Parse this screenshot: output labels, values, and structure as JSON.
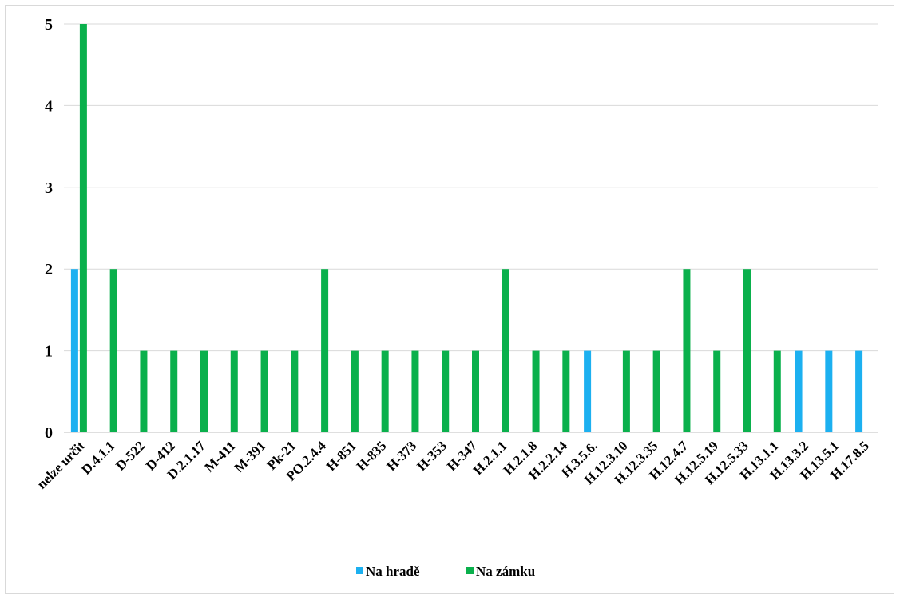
{
  "chart_data": {
    "type": "bar",
    "title": "",
    "xlabel": "",
    "ylabel": "",
    "ylim": [
      0,
      5
    ],
    "yticks": [
      0,
      1,
      2,
      3,
      4,
      5
    ],
    "grid": true,
    "legend_placement": "bottom",
    "categories": [
      "nelze určit",
      "D.4.1.1",
      "D-522",
      "D-412",
      "D.2.1.17",
      "M-411",
      "M-391",
      "Pk-21",
      "PO.2.4.4",
      "H-851",
      "H-835",
      "H-373",
      "H-353",
      "H-347",
      "H.2.1.1",
      "H.2.1.8",
      "H.2.2.14",
      "H.3.5.6.",
      "H.12.3.10",
      "H.12.3.35",
      "H.12.4.7",
      "H.12.5.19",
      "H.12.5.33",
      "H.13.1.1",
      "H.13.3.2",
      "H.13.5.1",
      "H.17.8.5"
    ],
    "series": [
      {
        "name": "Na hradě",
        "color": "#1cb0f0",
        "values": [
          2,
          0,
          0,
          0,
          0,
          0,
          0,
          0,
          0,
          0,
          0,
          0,
          0,
          0,
          0,
          0,
          0,
          1,
          0,
          0,
          0,
          0,
          0,
          0,
          1,
          1,
          1
        ]
      },
      {
        "name": "Na zámku",
        "color": "#0ab04c",
        "values": [
          5,
          2,
          1,
          1,
          1,
          1,
          1,
          1,
          2,
          1,
          1,
          1,
          1,
          1,
          2,
          1,
          1,
          0,
          1,
          1,
          2,
          1,
          2,
          1,
          0,
          0,
          0
        ]
      }
    ]
  }
}
